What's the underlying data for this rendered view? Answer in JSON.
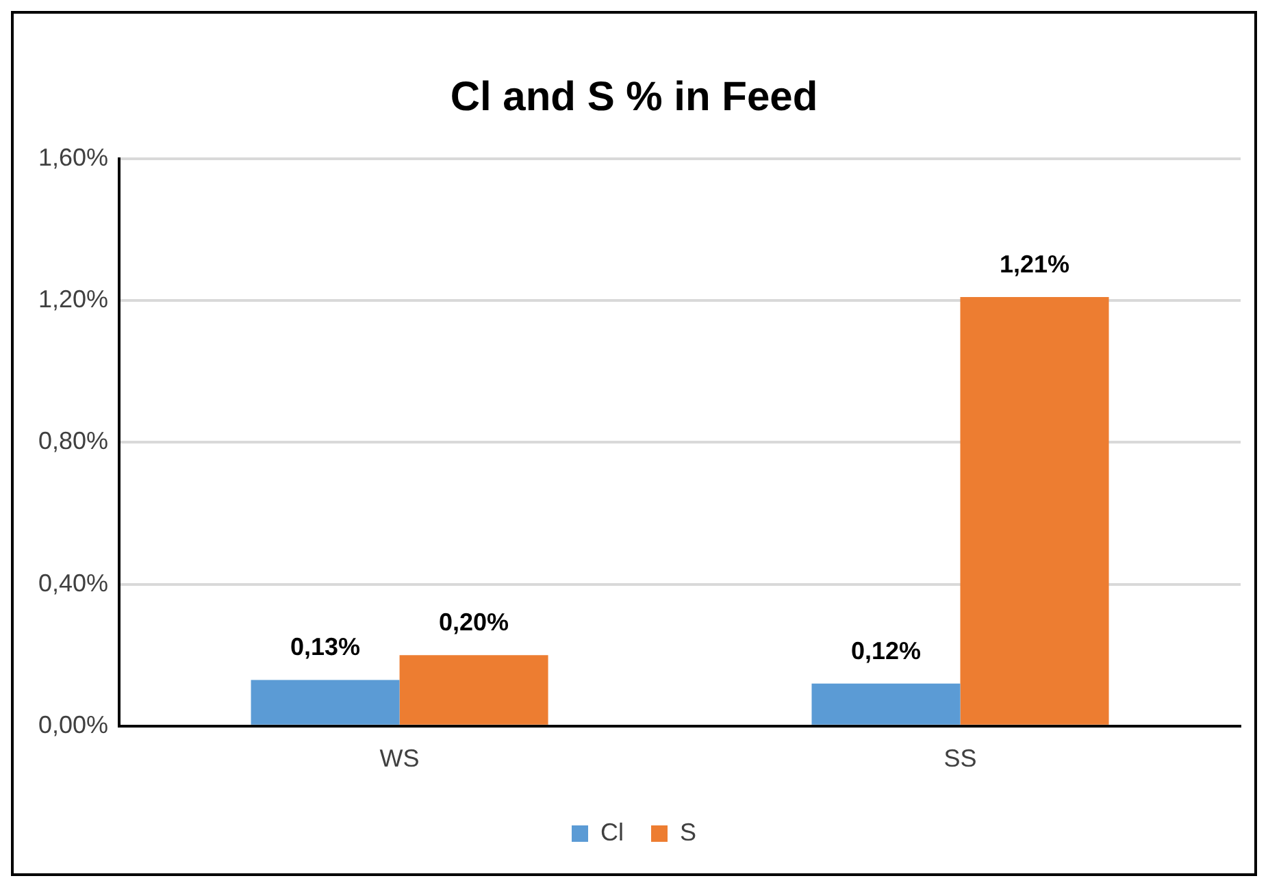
{
  "chart_data": {
    "type": "bar",
    "title": "Cl and S % in Feed",
    "categories": [
      "WS",
      "SS"
    ],
    "series": [
      {
        "name": "Cl",
        "color": "#5b9bd5",
        "values": [
          0.13,
          0.12
        ],
        "value_labels": [
          "0,13%",
          "0,12%"
        ]
      },
      {
        "name": "S",
        "color": "#ed7d31",
        "values": [
          0.2,
          1.21
        ],
        "value_labels": [
          "0,20%",
          "1,21%"
        ]
      }
    ],
    "ylim": [
      0,
      1.6
    ],
    "yticks": [
      {
        "value": 0,
        "label": "0,00%"
      },
      {
        "value": 0.4,
        "label": "0,40%"
      },
      {
        "value": 0.8,
        "label": "0,80%"
      },
      {
        "value": 1.2,
        "label": "1,20%"
      },
      {
        "value": 1.6,
        "label": "1,60%"
      }
    ],
    "grid": "y",
    "legend": "bottom"
  }
}
